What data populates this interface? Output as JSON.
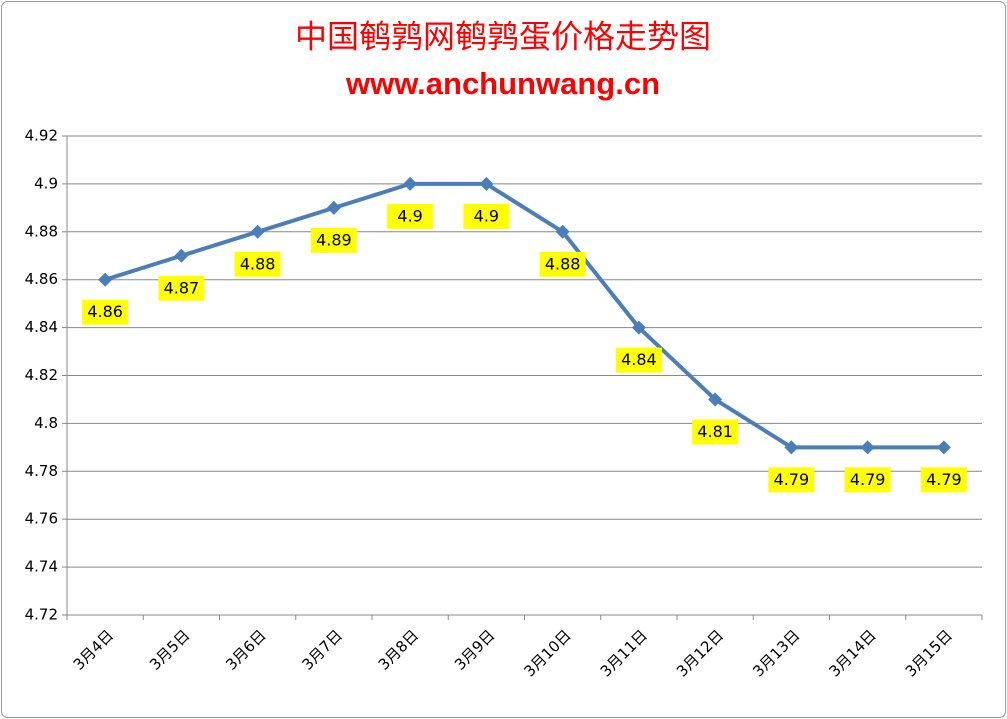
{
  "chart_data": {
    "type": "line",
    "title": "中国鹌鹑网鹌鹑蛋价格走势图",
    "subtitle": "www.anchunwang.cn",
    "categories": [
      "3月4日",
      "3月5日",
      "3月6日",
      "3月7日",
      "3月8日",
      "3月9日",
      "3月10日",
      "3月11日",
      "3月12日",
      "3月13日",
      "3月14日",
      "3月15日"
    ],
    "series": [
      {
        "color": "#4a7ebb",
        "values": [
          4.86,
          4.87,
          4.88,
          4.89,
          4.9,
          4.9,
          4.88,
          4.84,
          4.81,
          4.79,
          4.79,
          4.79
        ]
      }
    ],
    "ylim": [
      4.72,
      4.92
    ],
    "yticks": [
      4.72,
      4.74,
      4.76,
      4.78,
      4.8,
      4.82,
      4.84,
      4.86,
      4.88,
      4.9,
      4.92
    ],
    "grid": true
  }
}
